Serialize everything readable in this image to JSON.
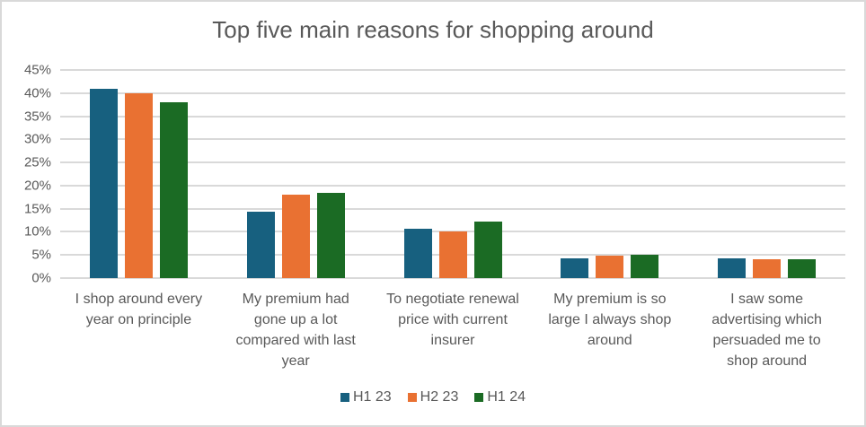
{
  "chart_data": {
    "type": "bar",
    "title": "Top five main reasons for shopping around",
    "xlabel": "",
    "ylabel": "",
    "ylim": [
      0,
      45
    ],
    "y_ticks": [
      "0%",
      "5%",
      "10%",
      "15%",
      "20%",
      "25%",
      "30%",
      "35%",
      "40%",
      "45%"
    ],
    "grid": true,
    "legend_position": "bottom",
    "categories": [
      "I shop around every year on principle",
      "My premium had gone up a lot compared with last year",
      "To negotiate renewal price with current insurer",
      "My premium is so large I always shop around",
      "I saw some advertising which persuaded me to shop around"
    ],
    "series": [
      {
        "name": "H1 23",
        "color": "#17607f",
        "values": [
          41,
          14.3,
          10.6,
          4.3,
          4.3
        ]
      },
      {
        "name": "H2 23",
        "color": "#e97132",
        "values": [
          40,
          18.0,
          10.0,
          4.9,
          4.1
        ]
      },
      {
        "name": "H1 24",
        "color": "#1b6b24",
        "values": [
          38,
          18.4,
          12.3,
          5.1,
          4.1
        ]
      }
    ]
  },
  "labels": {
    "title": "Top five main reasons for shopping around",
    "yticks": [
      "0%",
      "5%",
      "10%",
      "15%",
      "20%",
      "25%",
      "30%",
      "35%",
      "40%",
      "45%"
    ],
    "categories": [
      [
        "I shop around every",
        "year on principle"
      ],
      [
        "My premium had",
        "gone up a lot",
        "compared with last",
        "year"
      ],
      [
        "To negotiate renewal",
        "price with current",
        "insurer"
      ],
      [
        "My premium is so",
        "large I always shop",
        "around"
      ],
      [
        "I saw some",
        "advertising which",
        "persuaded me to",
        "shop around"
      ]
    ],
    "legend": [
      "H1 23",
      "H2 23",
      "H1 24"
    ]
  }
}
